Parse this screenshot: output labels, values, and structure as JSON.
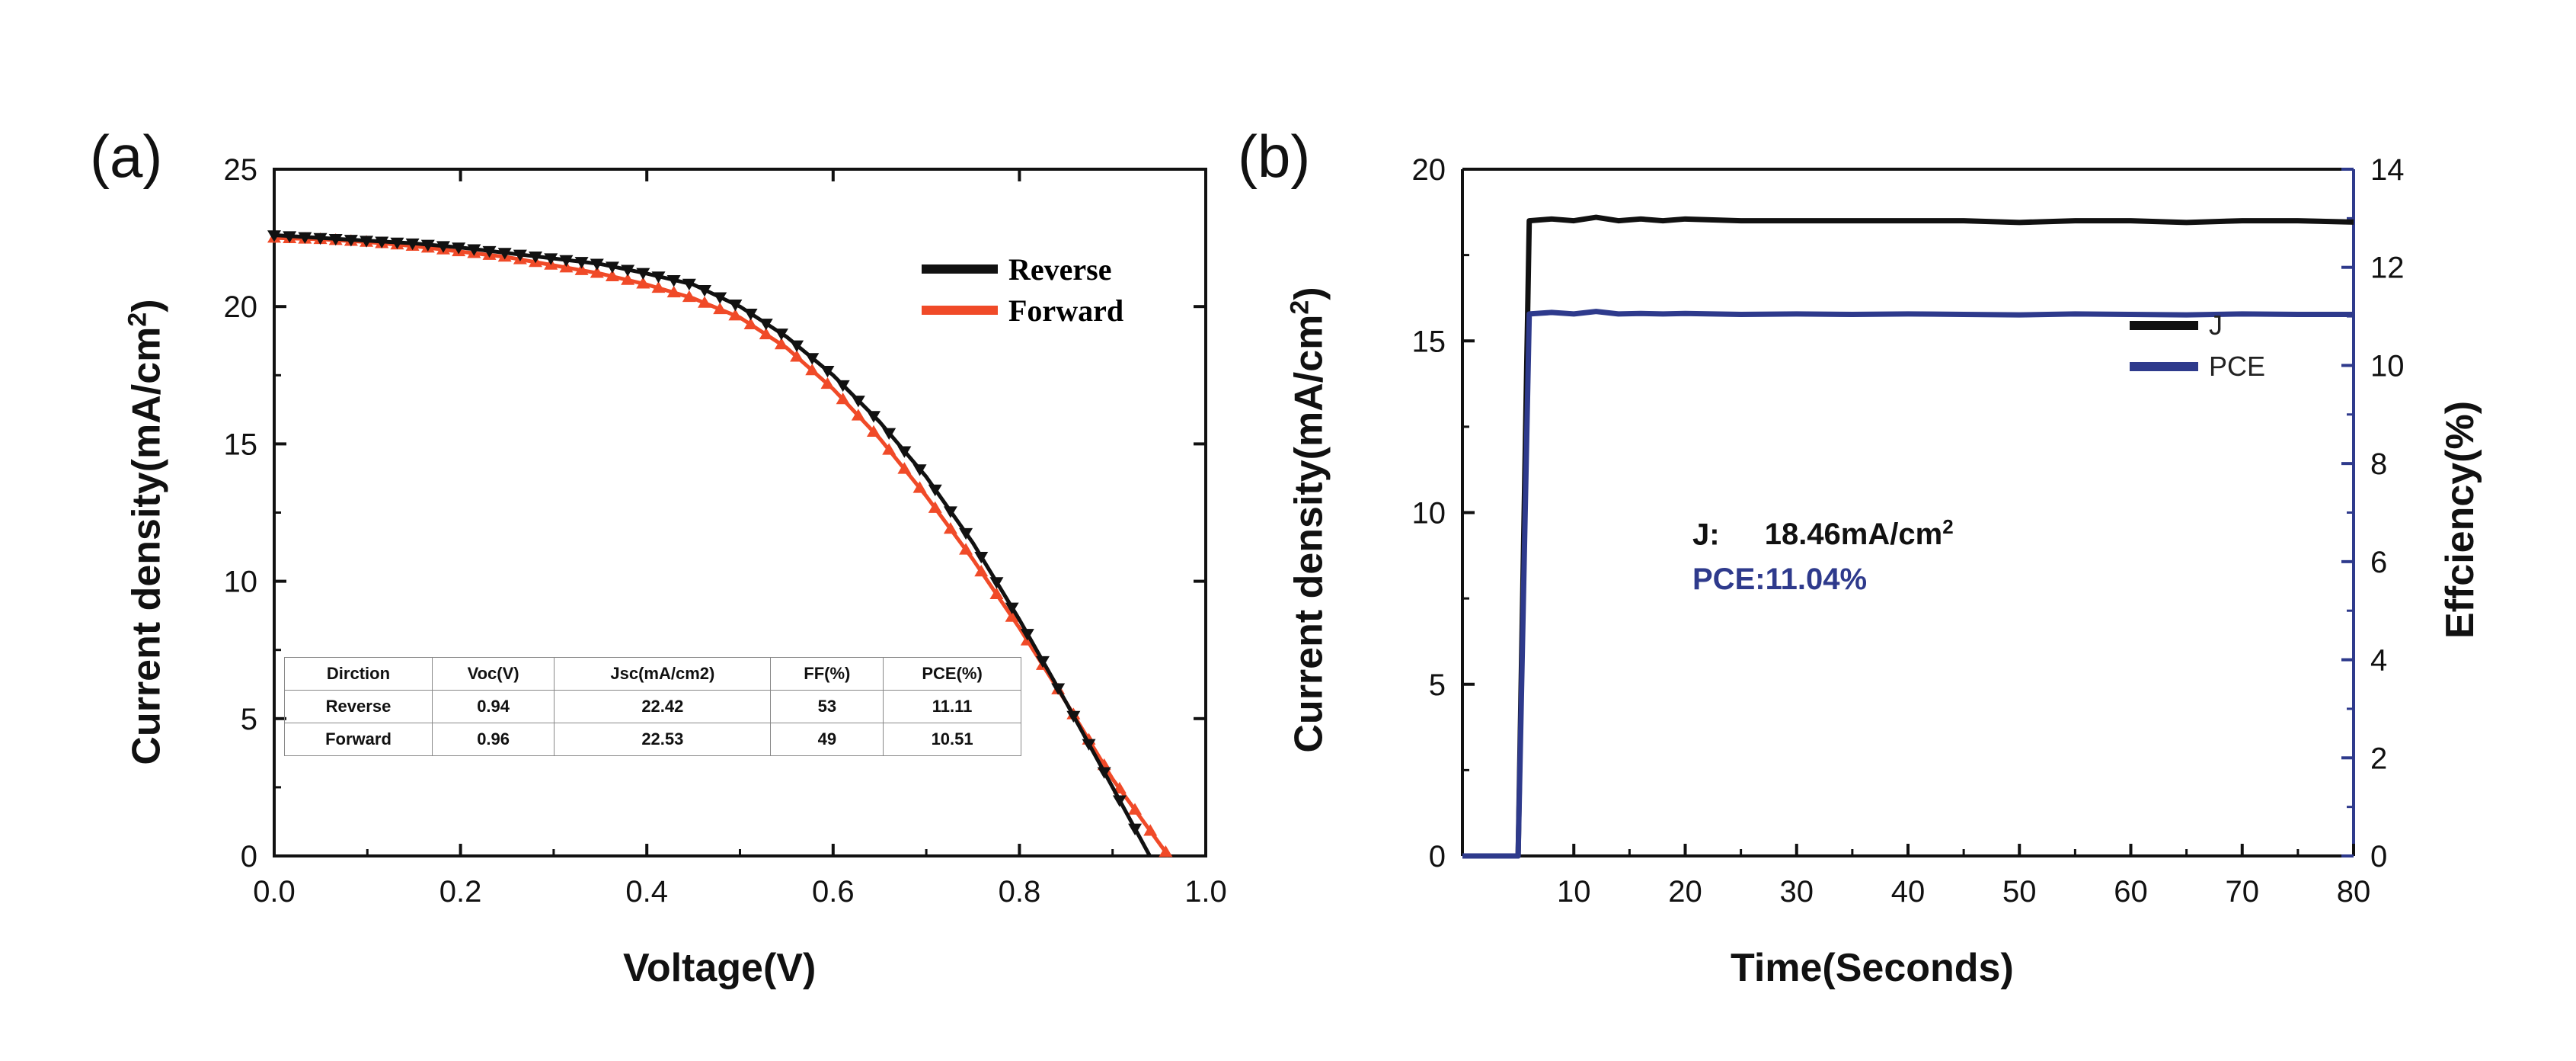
{
  "chart_data": [
    {
      "panel_label": "(a)",
      "type": "line",
      "xlabel": "Voltage(V)",
      "ylabel_text": "Current density(mA/cm",
      "ylabel_sup": "2",
      "ylabel_tail": ")",
      "xlim": [
        0.0,
        1.0
      ],
      "ylim": [
        0,
        25
      ],
      "xticks": [
        "0.0",
        "0.2",
        "0.4",
        "0.6",
        "0.8",
        "1.0"
      ],
      "yticks": [
        "0",
        "5",
        "10",
        "15",
        "20",
        "25"
      ],
      "series": [
        {
          "name": "Reverse",
          "color": "#111111",
          "marker": "triangle-down",
          "x": [
            0.0,
            0.05,
            0.1,
            0.15,
            0.2,
            0.25,
            0.3,
            0.35,
            0.4,
            0.45,
            0.5,
            0.55,
            0.6,
            0.65,
            0.7,
            0.75,
            0.8,
            0.85,
            0.9,
            0.94
          ],
          "y": [
            22.6,
            22.5,
            22.4,
            22.3,
            22.15,
            21.95,
            21.75,
            21.55,
            21.2,
            20.8,
            20.0,
            18.9,
            17.5,
            15.8,
            13.8,
            11.4,
            8.6,
            5.6,
            2.5,
            0.0
          ]
        },
        {
          "name": "Forward",
          "color": "#f04a28",
          "marker": "triangle-up",
          "x": [
            0.0,
            0.05,
            0.1,
            0.15,
            0.2,
            0.25,
            0.3,
            0.35,
            0.4,
            0.45,
            0.5,
            0.55,
            0.6,
            0.65,
            0.7,
            0.75,
            0.8,
            0.85,
            0.9,
            0.96
          ],
          "y": [
            22.5,
            22.45,
            22.35,
            22.2,
            22.0,
            21.8,
            21.5,
            21.2,
            20.8,
            20.3,
            19.6,
            18.5,
            17.0,
            15.2,
            13.1,
            10.8,
            8.3,
            5.6,
            2.8,
            0.0
          ]
        }
      ],
      "table": {
        "headers": [
          "Dirction",
          "Voc(V)",
          "Jsc(mA/cm2)",
          "FF(%)",
          "PCE(%)"
        ],
        "rows": [
          [
            "Reverse",
            "0.94",
            "22.42",
            "53",
            "11.11"
          ],
          [
            "Forward",
            "0.96",
            "22.53",
            "49",
            "10.51"
          ]
        ]
      },
      "legend_position": "top-right"
    },
    {
      "panel_label": "(b)",
      "type": "line",
      "xlabel": "Time(Seconds)",
      "ylabel_text": "Current density(mA/cm",
      "ylabel_sup": "2",
      "ylabel_tail": ")",
      "y2label": "Effciency(%)",
      "xlim": [
        0,
        80
      ],
      "ylim": [
        0,
        20
      ],
      "y2lim": [
        0,
        14
      ],
      "xticks": [
        "10",
        "20",
        "30",
        "40",
        "50",
        "60",
        "70",
        "80"
      ],
      "yticks": [
        "0",
        "5",
        "10",
        "15",
        "20"
      ],
      "y2ticks": [
        "0",
        "2",
        "4",
        "6",
        "8",
        "10",
        "12",
        "14"
      ],
      "series": [
        {
          "name": "J",
          "axis": "left",
          "color": "#111111",
          "x": [
            0,
            5,
            6,
            8,
            10,
            12,
            14,
            16,
            18,
            20,
            25,
            30,
            35,
            40,
            45,
            50,
            55,
            60,
            65,
            70,
            75,
            80
          ],
          "y": [
            0,
            0,
            18.5,
            18.55,
            18.5,
            18.6,
            18.5,
            18.55,
            18.5,
            18.55,
            18.5,
            18.5,
            18.5,
            18.5,
            18.5,
            18.45,
            18.5,
            18.5,
            18.45,
            18.5,
            18.5,
            18.46
          ]
        },
        {
          "name": "PCE",
          "axis": "right",
          "color": "#2e3a8c",
          "x": [
            0,
            5,
            6,
            8,
            10,
            12,
            14,
            16,
            18,
            20,
            25,
            30,
            35,
            40,
            45,
            50,
            55,
            60,
            65,
            70,
            75,
            80
          ],
          "y": [
            0,
            0,
            11.05,
            11.08,
            11.05,
            11.1,
            11.05,
            11.06,
            11.05,
            11.06,
            11.04,
            11.05,
            11.04,
            11.05,
            11.04,
            11.03,
            11.05,
            11.04,
            11.03,
            11.05,
            11.04,
            11.04
          ]
        }
      ],
      "annotation_j_label": "J:",
      "annotation_j_value": "18.46mA/cm",
      "annotation_j_sup": "2",
      "annotation_pce": "PCE:11.04%",
      "legend_position": "center-right"
    }
  ]
}
